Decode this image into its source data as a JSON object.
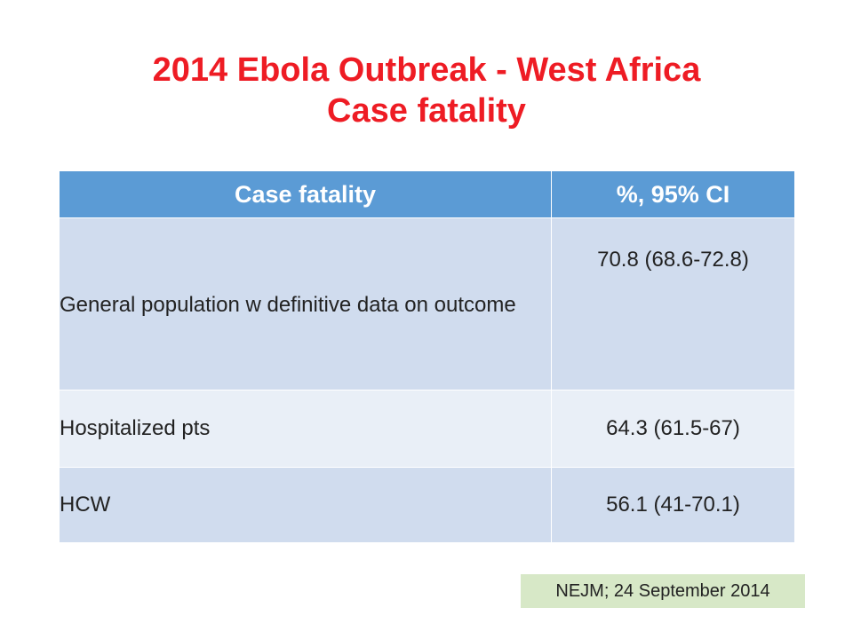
{
  "title": {
    "line1": "2014 Ebola Outbreak - West Africa",
    "line2": "Case fatality"
  },
  "table": {
    "headers": [
      "Case fatality",
      "%, 95% CI"
    ],
    "rows": [
      {
        "label": "General population w definitive data on outcome",
        "value": "70.8 (68.6-72.8)"
      },
      {
        "label": "Hospitalized pts",
        "value": "64.3 (61.5-67)"
      },
      {
        "label": "HCW",
        "value": "56.1 (41-70.1)"
      }
    ]
  },
  "source": "NEJM; 24 September 2014",
  "colors": {
    "title": "#ee1c24",
    "header_bg": "#5b9bd5",
    "row_dark": "#d0dcee",
    "row_light": "#e9eff7",
    "source_bg": "#d7e8c7"
  }
}
